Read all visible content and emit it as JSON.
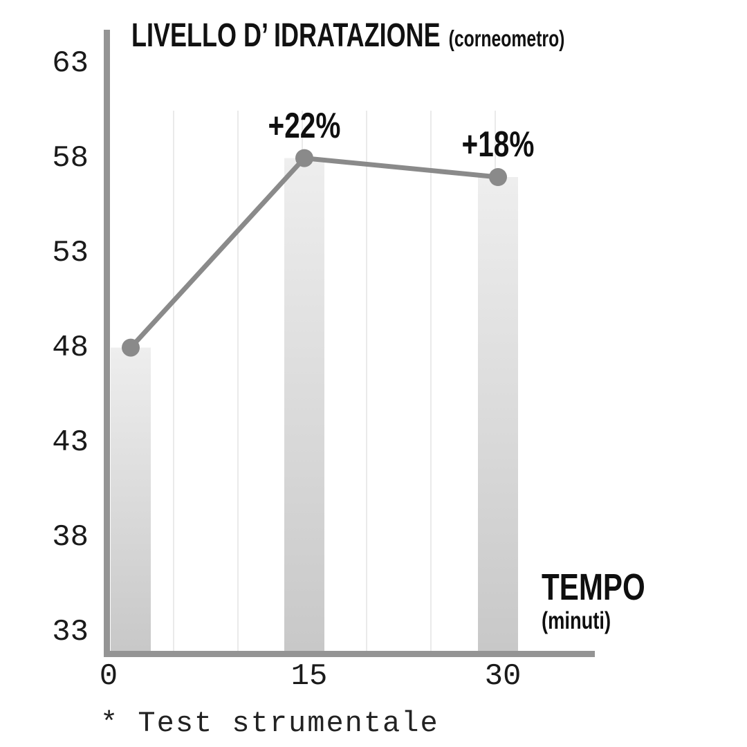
{
  "page": {
    "background": "#ffffff"
  },
  "header": {
    "title": "LIVELLO D’ IDRATAZIONE",
    "subtitle": "(corneometro)"
  },
  "x_axis_title": {
    "main": "TEMPO",
    "sub": "(minuti)"
  },
  "footnote": "* Test strumentale",
  "chart_data": {
    "type": "line",
    "title": "LIVELLO D’ IDRATAZIONE (corneometro)",
    "xlabel": "TEMPO (minuti)",
    "ylabel": "LIVELLO D’ IDRATAZIONE (corneometro)",
    "x": [
      0,
      15,
      30
    ],
    "x_tick_labels": [
      "0",
      "15",
      "30"
    ],
    "y_ticks": [
      33,
      38,
      43,
      48,
      53,
      58,
      63
    ],
    "ylim": [
      32,
      65
    ],
    "grid": "vertical light-gray lines every 5 minutes",
    "legend": "none",
    "series": [
      {
        "name": "Livello d’idratazione (corneometro)",
        "type": "line-with-dots",
        "values": [
          48,
          58,
          57
        ]
      },
      {
        "name": "barre di sfondo",
        "type": "bar",
        "values": [
          48,
          58,
          57
        ]
      }
    ],
    "point_labels": [
      "",
      "+22%",
      "+18%"
    ],
    "colors": {
      "line": "#8a8a8a",
      "dot": "#8a8a8a",
      "axis": "#949494",
      "grid": "#eaeaea",
      "bar_top": "#eeeeee",
      "bar_bottom": "#c8c8c8",
      "text": "#111111"
    }
  }
}
